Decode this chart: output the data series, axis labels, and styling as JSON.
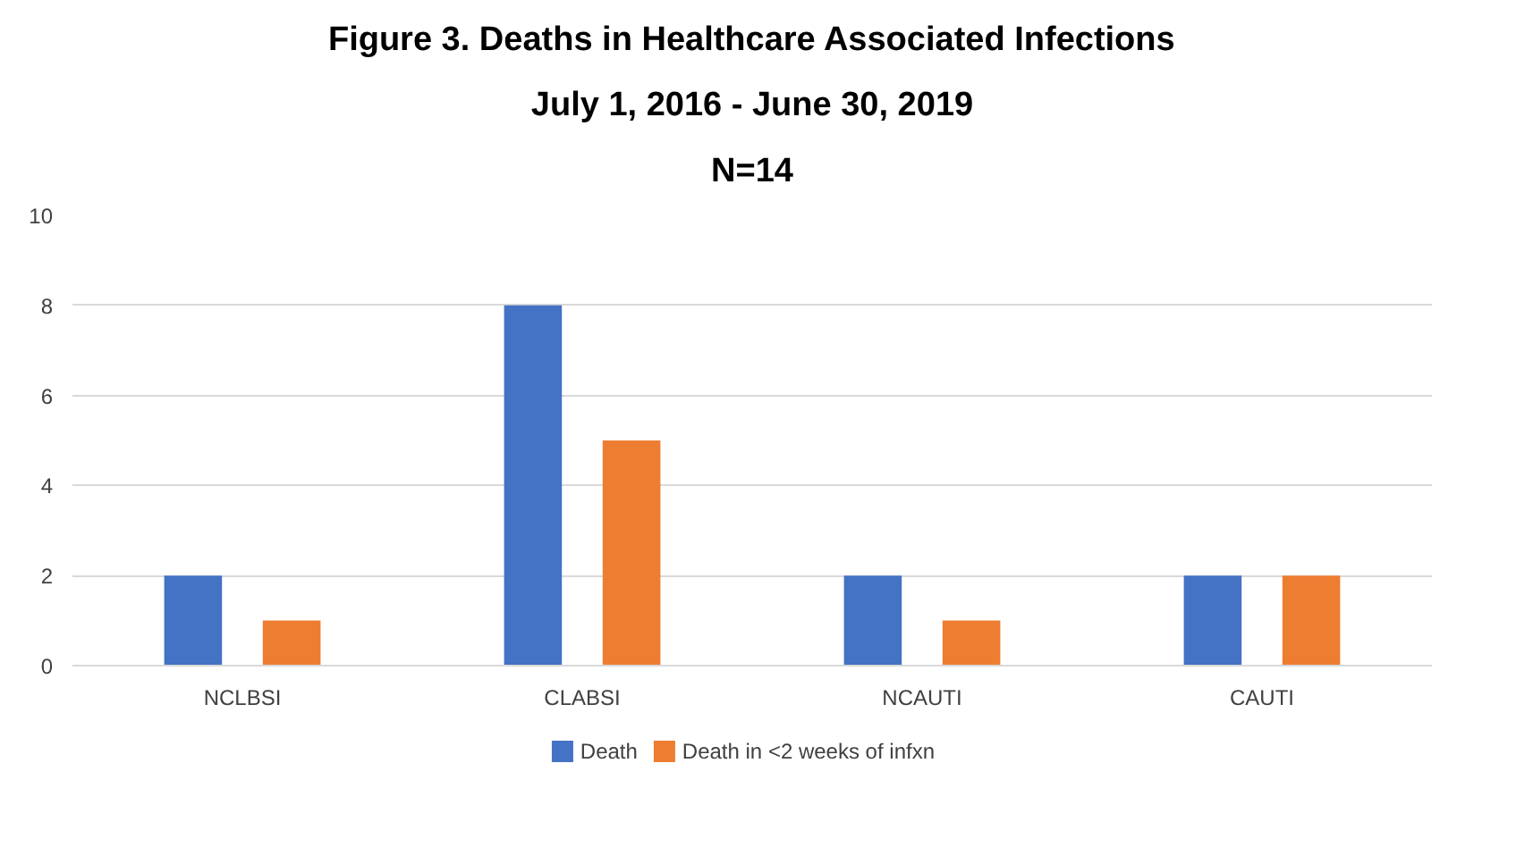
{
  "chart_data": {
    "type": "bar",
    "title": "Figure 3. Deaths in Healthcare Associated Infections\nJuly 1, 2016 - June 30, 2019\nN=14",
    "categories": [
      "NCLBSI",
      "CLABSI",
      "NCAUTI",
      "CAUTI"
    ],
    "series": [
      {
        "name": "Death",
        "color": "#4472c4",
        "values": [
          2,
          8,
          2,
          2
        ]
      },
      {
        "name": "Death in <2 weeks of infxn",
        "color": "#ed7d31",
        "values": [
          1,
          5,
          1,
          2
        ]
      }
    ],
    "ylim": [
      0,
      10
    ],
    "yticks": [
      0,
      2,
      4,
      6,
      8,
      10
    ],
    "grid": "y",
    "legend": "bottom"
  }
}
